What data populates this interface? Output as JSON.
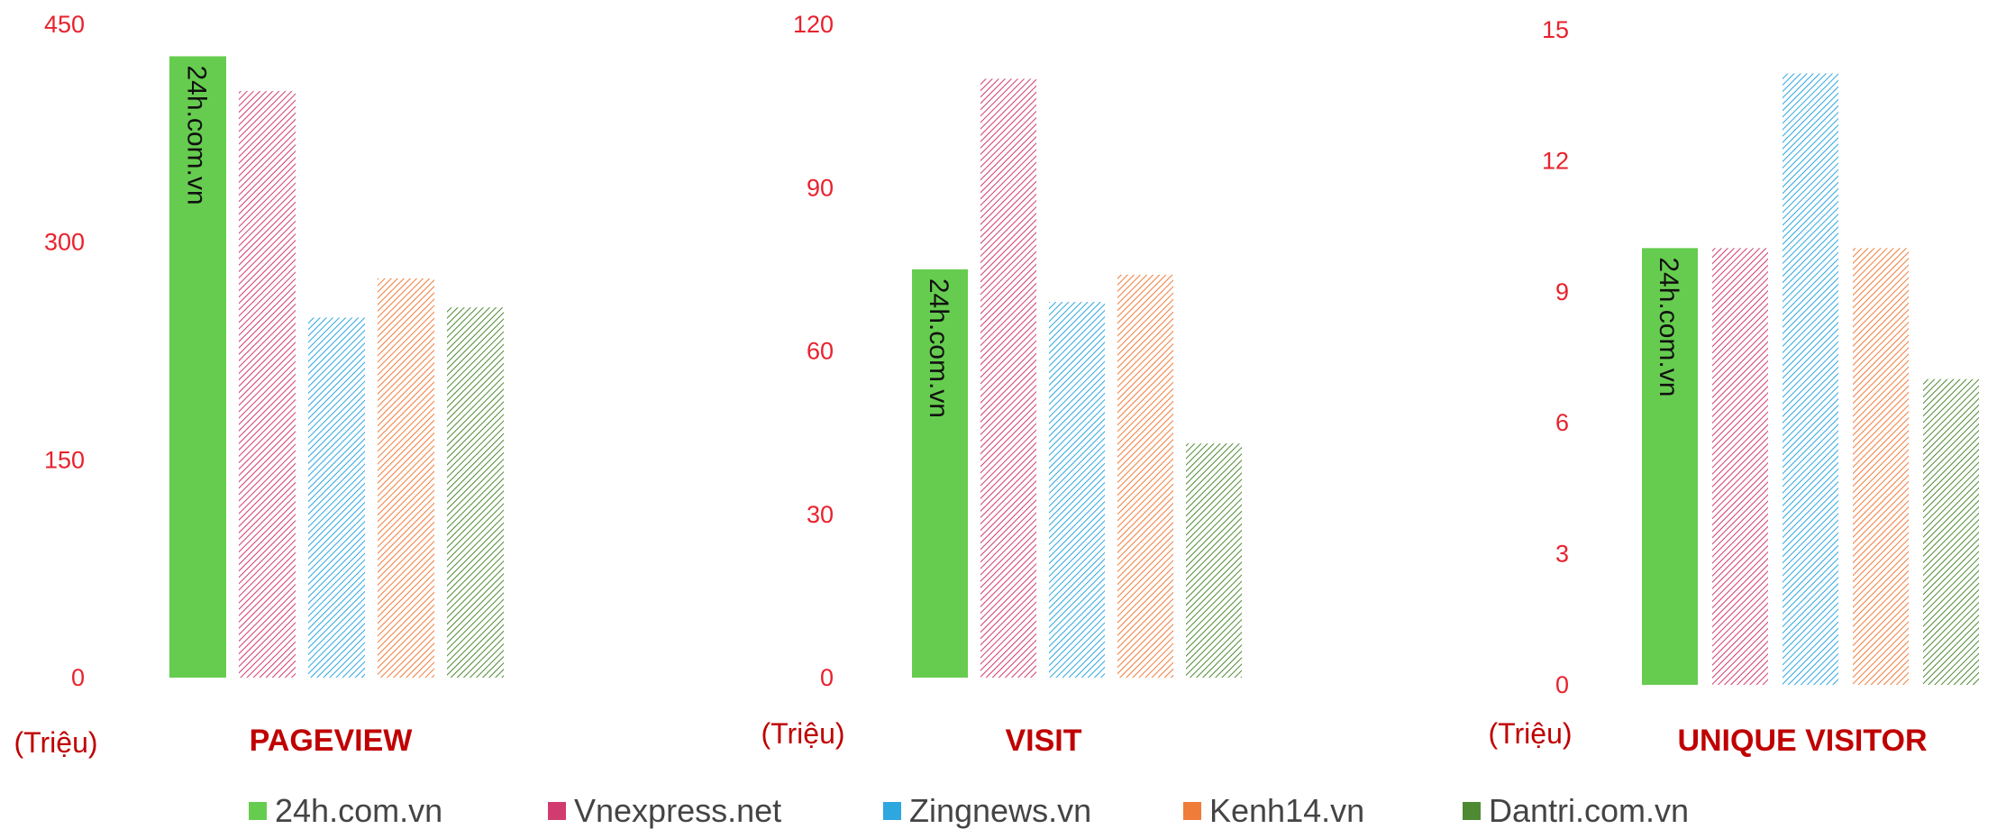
{
  "colors": {
    "tick": "#e8222d",
    "title": "#c00000",
    "unit": "#c00000"
  },
  "legend": [
    {
      "label": "24h.com.vn",
      "color": "#66cc4f"
    },
    {
      "label": "Vnexpress.net",
      "color": "#d23b6f"
    },
    {
      "label": "Zingnews.vn",
      "color": "#2ea6e0"
    },
    {
      "label": "Kenh14.vn",
      "color": "#f07c3a"
    },
    {
      "label": "Dantri.com.vn",
      "color": "#4e8a33"
    }
  ],
  "chart_data": [
    {
      "type": "bar",
      "title": "PAGEVIEW",
      "ylabel": "(Triệu)",
      "ylim": [
        0,
        450
      ],
      "yticks": [
        0,
        150,
        300,
        450
      ],
      "categories": [
        "24h.com.vn",
        "Vnexpress.net",
        "Zingnews.vn",
        "Kenh14.vn",
        "Dantri.com.vn"
      ],
      "values": [
        428,
        404,
        248,
        275,
        255
      ],
      "bar_label": "24h.com.vn"
    },
    {
      "type": "bar",
      "title": "VISIT",
      "ylabel": "(Triệu)",
      "ylim": [
        0,
        120
      ],
      "yticks": [
        0,
        30,
        60,
        90,
        120
      ],
      "categories": [
        "24h.com.vn",
        "Vnexpress.net",
        "Zingnews.vn",
        "Kenh14.vn",
        "Dantri.com.vn"
      ],
      "values": [
        75,
        110,
        69,
        74,
        43
      ],
      "bar_label": "24h.com.vn"
    },
    {
      "type": "bar",
      "title": "UNIQUE VISITOR",
      "ylabel": "(Triệu)",
      "ylim": [
        0,
        15
      ],
      "yticks": [
        0,
        3,
        6,
        9,
        12,
        15
      ],
      "categories": [
        "24h.com.vn",
        "Vnexpress.net",
        "Zingnews.vn",
        "Kenh14.vn",
        "Dantri.com.vn"
      ],
      "values": [
        10,
        10,
        14,
        10,
        7
      ],
      "bar_label": "24h.com.vn"
    }
  ]
}
